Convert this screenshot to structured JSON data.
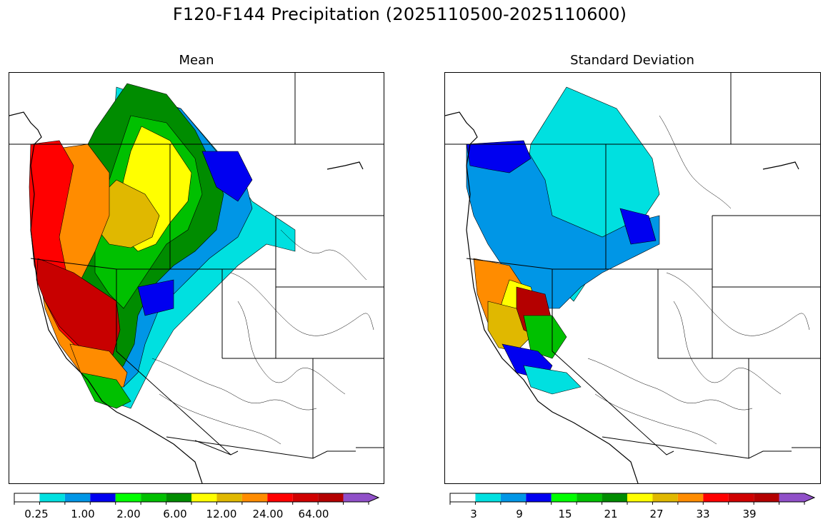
{
  "figure": {
    "title": "F120-F144 Precipitation (2025110500-2025110600)"
  },
  "panels": [
    {
      "id": "mean",
      "title": "Mean",
      "colorbar": {
        "colors": [
          "#ffffff",
          "#00e0e0",
          "#0096e6",
          "#0000f0",
          "#00ff00",
          "#00c000",
          "#008c00",
          "#ffff00",
          "#e0b800",
          "#ff8c00",
          "#ff0000",
          "#d00000",
          "#b40000",
          "#ff00ff",
          "#9050c8"
        ],
        "extend": "max",
        "tick_labels": [
          "0.25",
          "1.00",
          "2.00",
          "6.00",
          "12.00",
          "24.00",
          "64.00"
        ]
      }
    },
    {
      "id": "sd",
      "title": "Standard Deviation",
      "colorbar": {
        "colors": [
          "#ffffff",
          "#00e0e0",
          "#0096e6",
          "#0000f0",
          "#00ff00",
          "#00c000",
          "#008c00",
          "#ffff00",
          "#e0b800",
          "#ff8c00",
          "#ff0000",
          "#d00000",
          "#b40000",
          "#ff00ff",
          "#9050c8"
        ],
        "extend": "max",
        "tick_labels": [
          "3",
          "9",
          "15",
          "21",
          "27",
          "33",
          "39"
        ]
      }
    }
  ]
}
